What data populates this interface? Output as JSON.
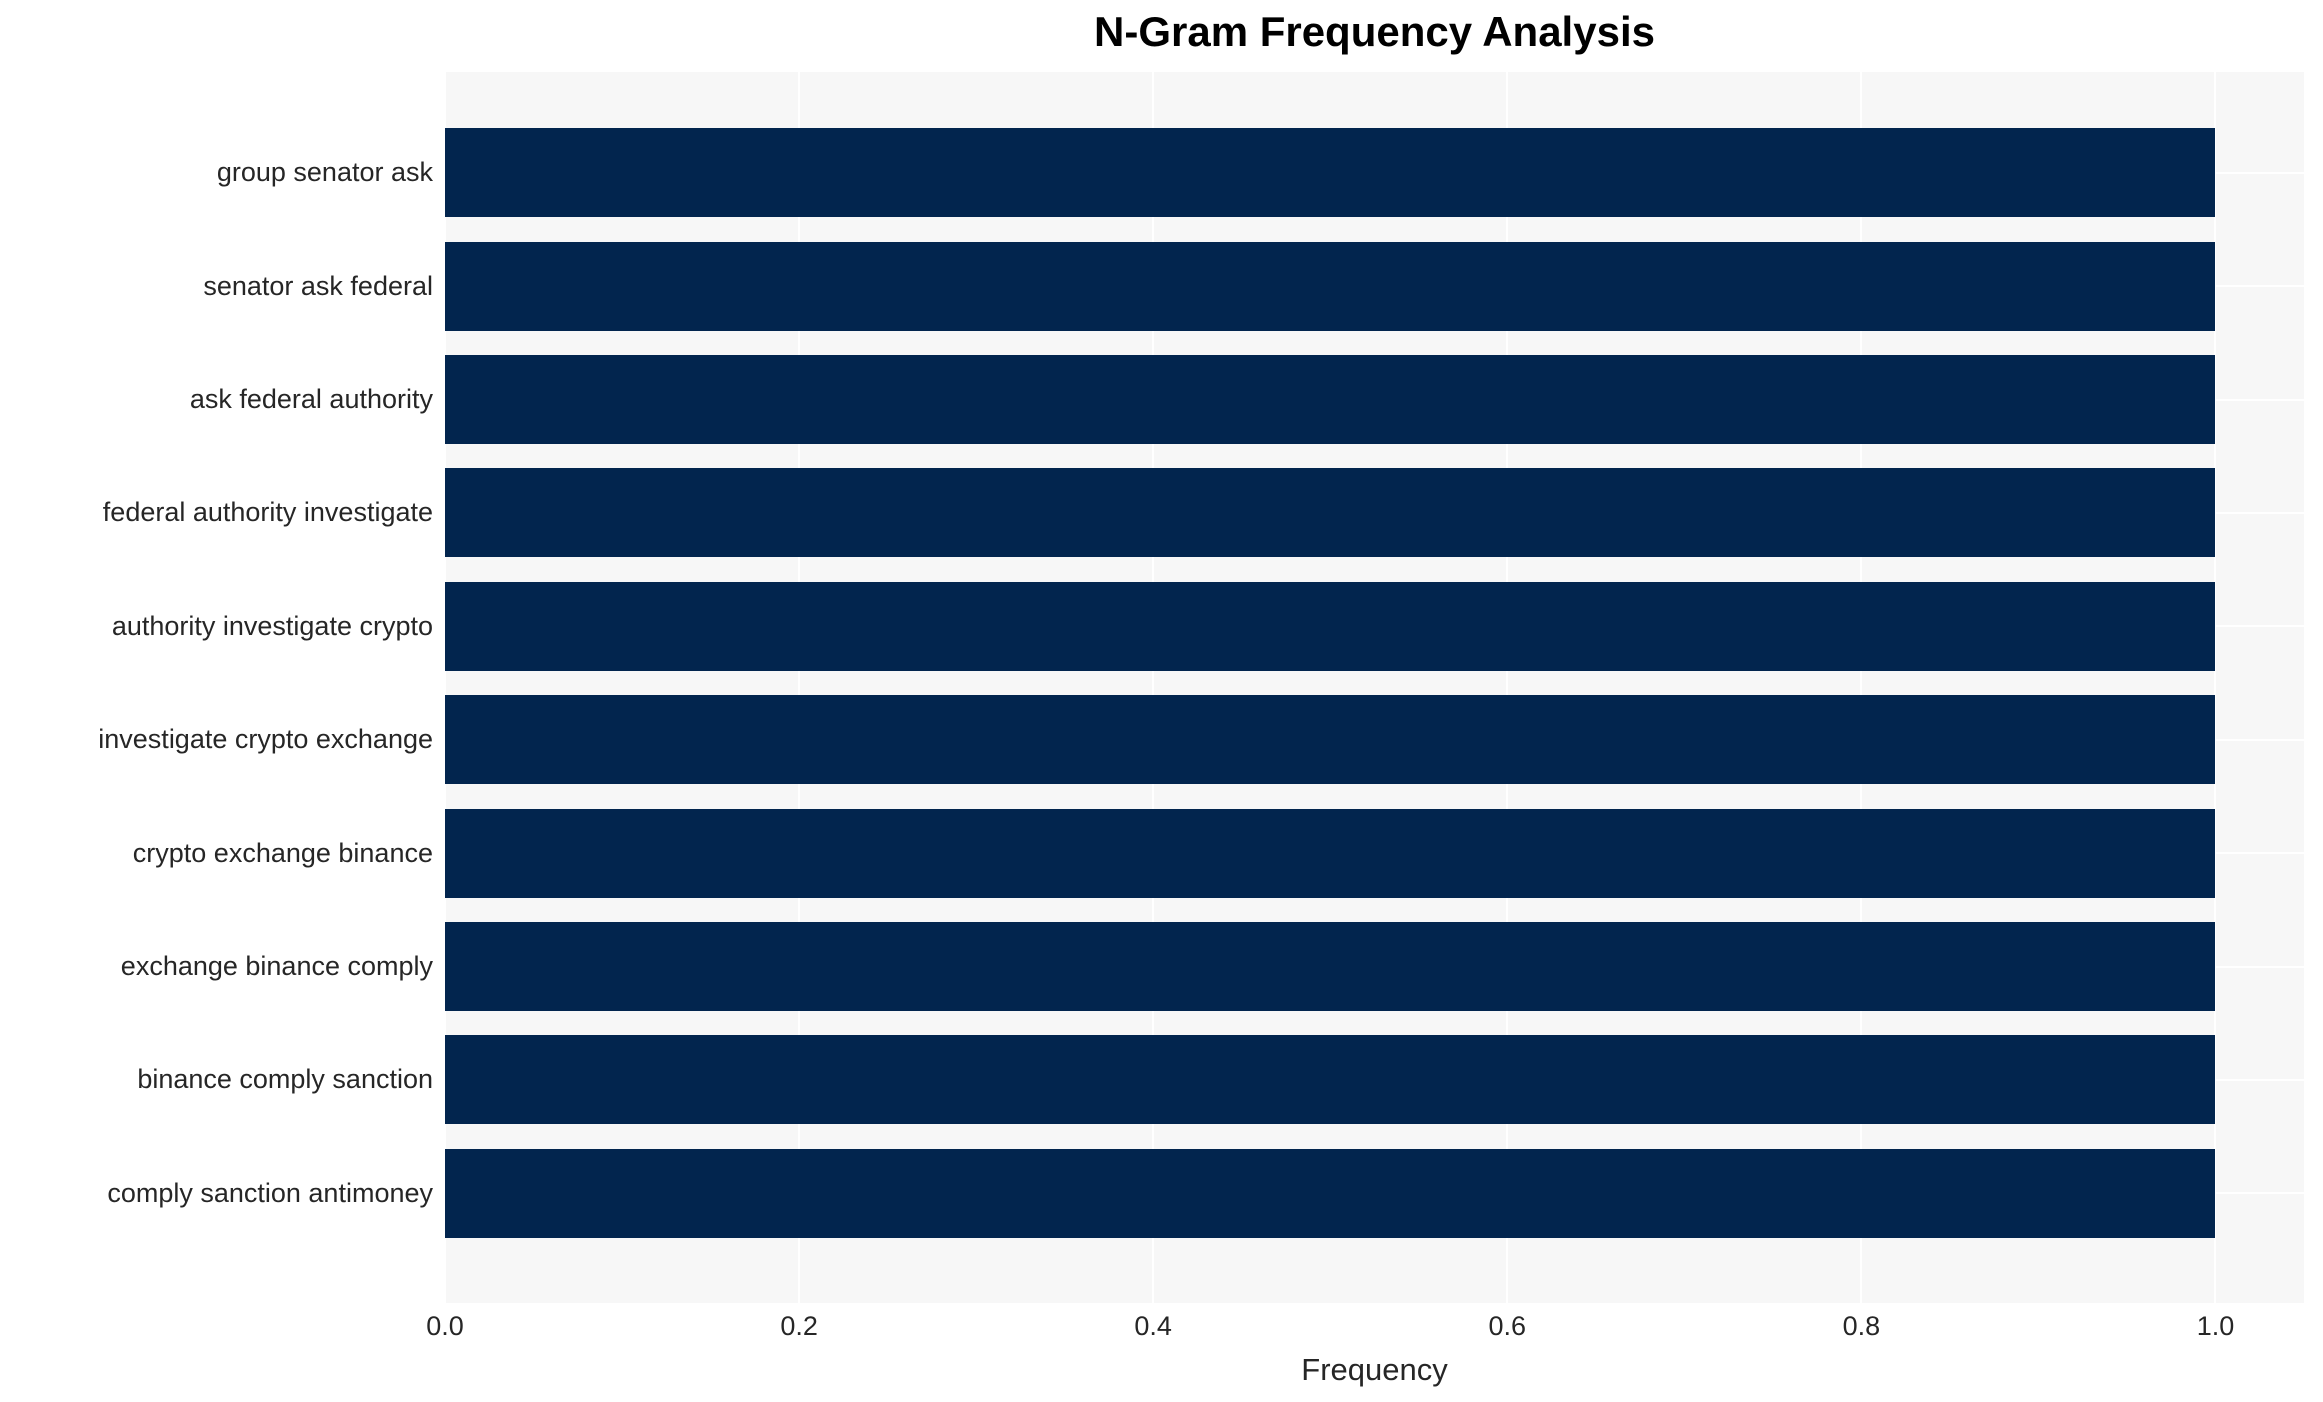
{
  "page": {
    "background_color": "#ffffff"
  },
  "chart_data": {
    "type": "bar",
    "orientation": "horizontal",
    "title": "N-Gram Frequency Analysis",
    "xlabel": "Frequency",
    "ylabel": "",
    "categories": [
      "group senator ask",
      "senator ask federal",
      "ask federal authority",
      "federal authority investigate",
      "authority investigate crypto",
      "investigate crypto exchange",
      "crypto exchange binance",
      "exchange binance comply",
      "binance comply sanction",
      "comply sanction antimoney"
    ],
    "values": [
      1.0,
      1.0,
      1.0,
      1.0,
      1.0,
      1.0,
      1.0,
      1.0,
      1.0,
      1.0
    ],
    "xlim": [
      0,
      1.05
    ],
    "x_ticks": [
      0.0,
      0.2,
      0.4,
      0.6,
      0.8,
      1.0
    ],
    "x_tick_labels": [
      "0.0",
      "0.2",
      "0.4",
      "0.6",
      "0.8",
      "1.0"
    ],
    "grid": "on",
    "legend_position": "none",
    "colors": {
      "bar": "#02254e",
      "plot_background": "#f7f7f7",
      "grid_line": "#ffffff",
      "tick_text": "#262626",
      "label_text": "#262626",
      "title_text": "#000000"
    }
  }
}
